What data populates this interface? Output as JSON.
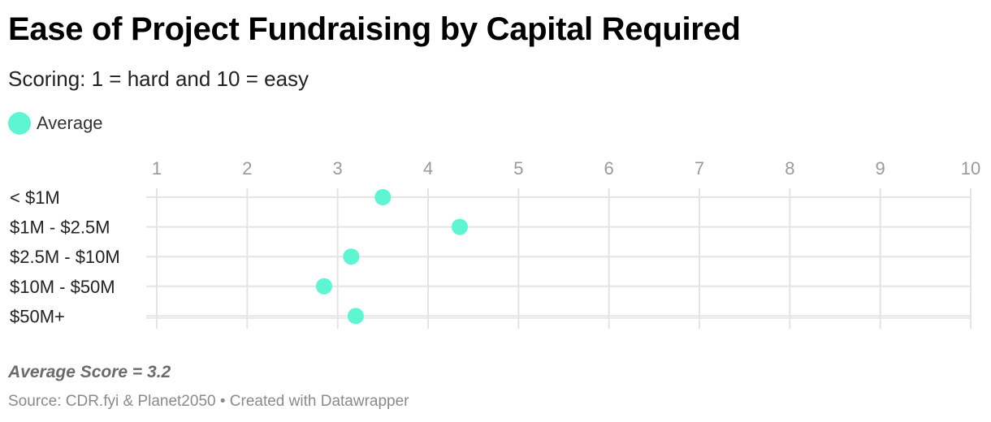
{
  "title": "Ease of Project Fundraising by Capital Required",
  "subtitle": "Scoring: 1 = hard and 10 = easy",
  "note": "Average Score = 3.2",
  "footer": "Source: CDR.fyi & Planet2050 • Created with Datawrapper",
  "colors": {
    "point": "#5ef5d3",
    "grid": "#e4e4e4",
    "tick_label": "#9a9a9a",
    "category_label": "#222222"
  },
  "chart_data": {
    "type": "scatter",
    "title": "Ease of Project Fundraising by Capital Required",
    "subtitle": "Scoring: 1 = hard and 10 = easy",
    "xlabel": "",
    "ylabel": "",
    "xlim": [
      1,
      10
    ],
    "x_ticks": [
      "1",
      "2",
      "3",
      "4",
      "5",
      "6",
      "7",
      "8",
      "9",
      "10"
    ],
    "categories": [
      "< $1M",
      "$1M - $2.5M",
      "$2.5M - $10M",
      "$10M - $50M",
      "$50M+"
    ],
    "series": [
      {
        "name": "Average",
        "values": [
          3.5,
          4.35,
          3.15,
          2.85,
          3.2
        ]
      }
    ],
    "legend": "top-left",
    "grid": true
  }
}
